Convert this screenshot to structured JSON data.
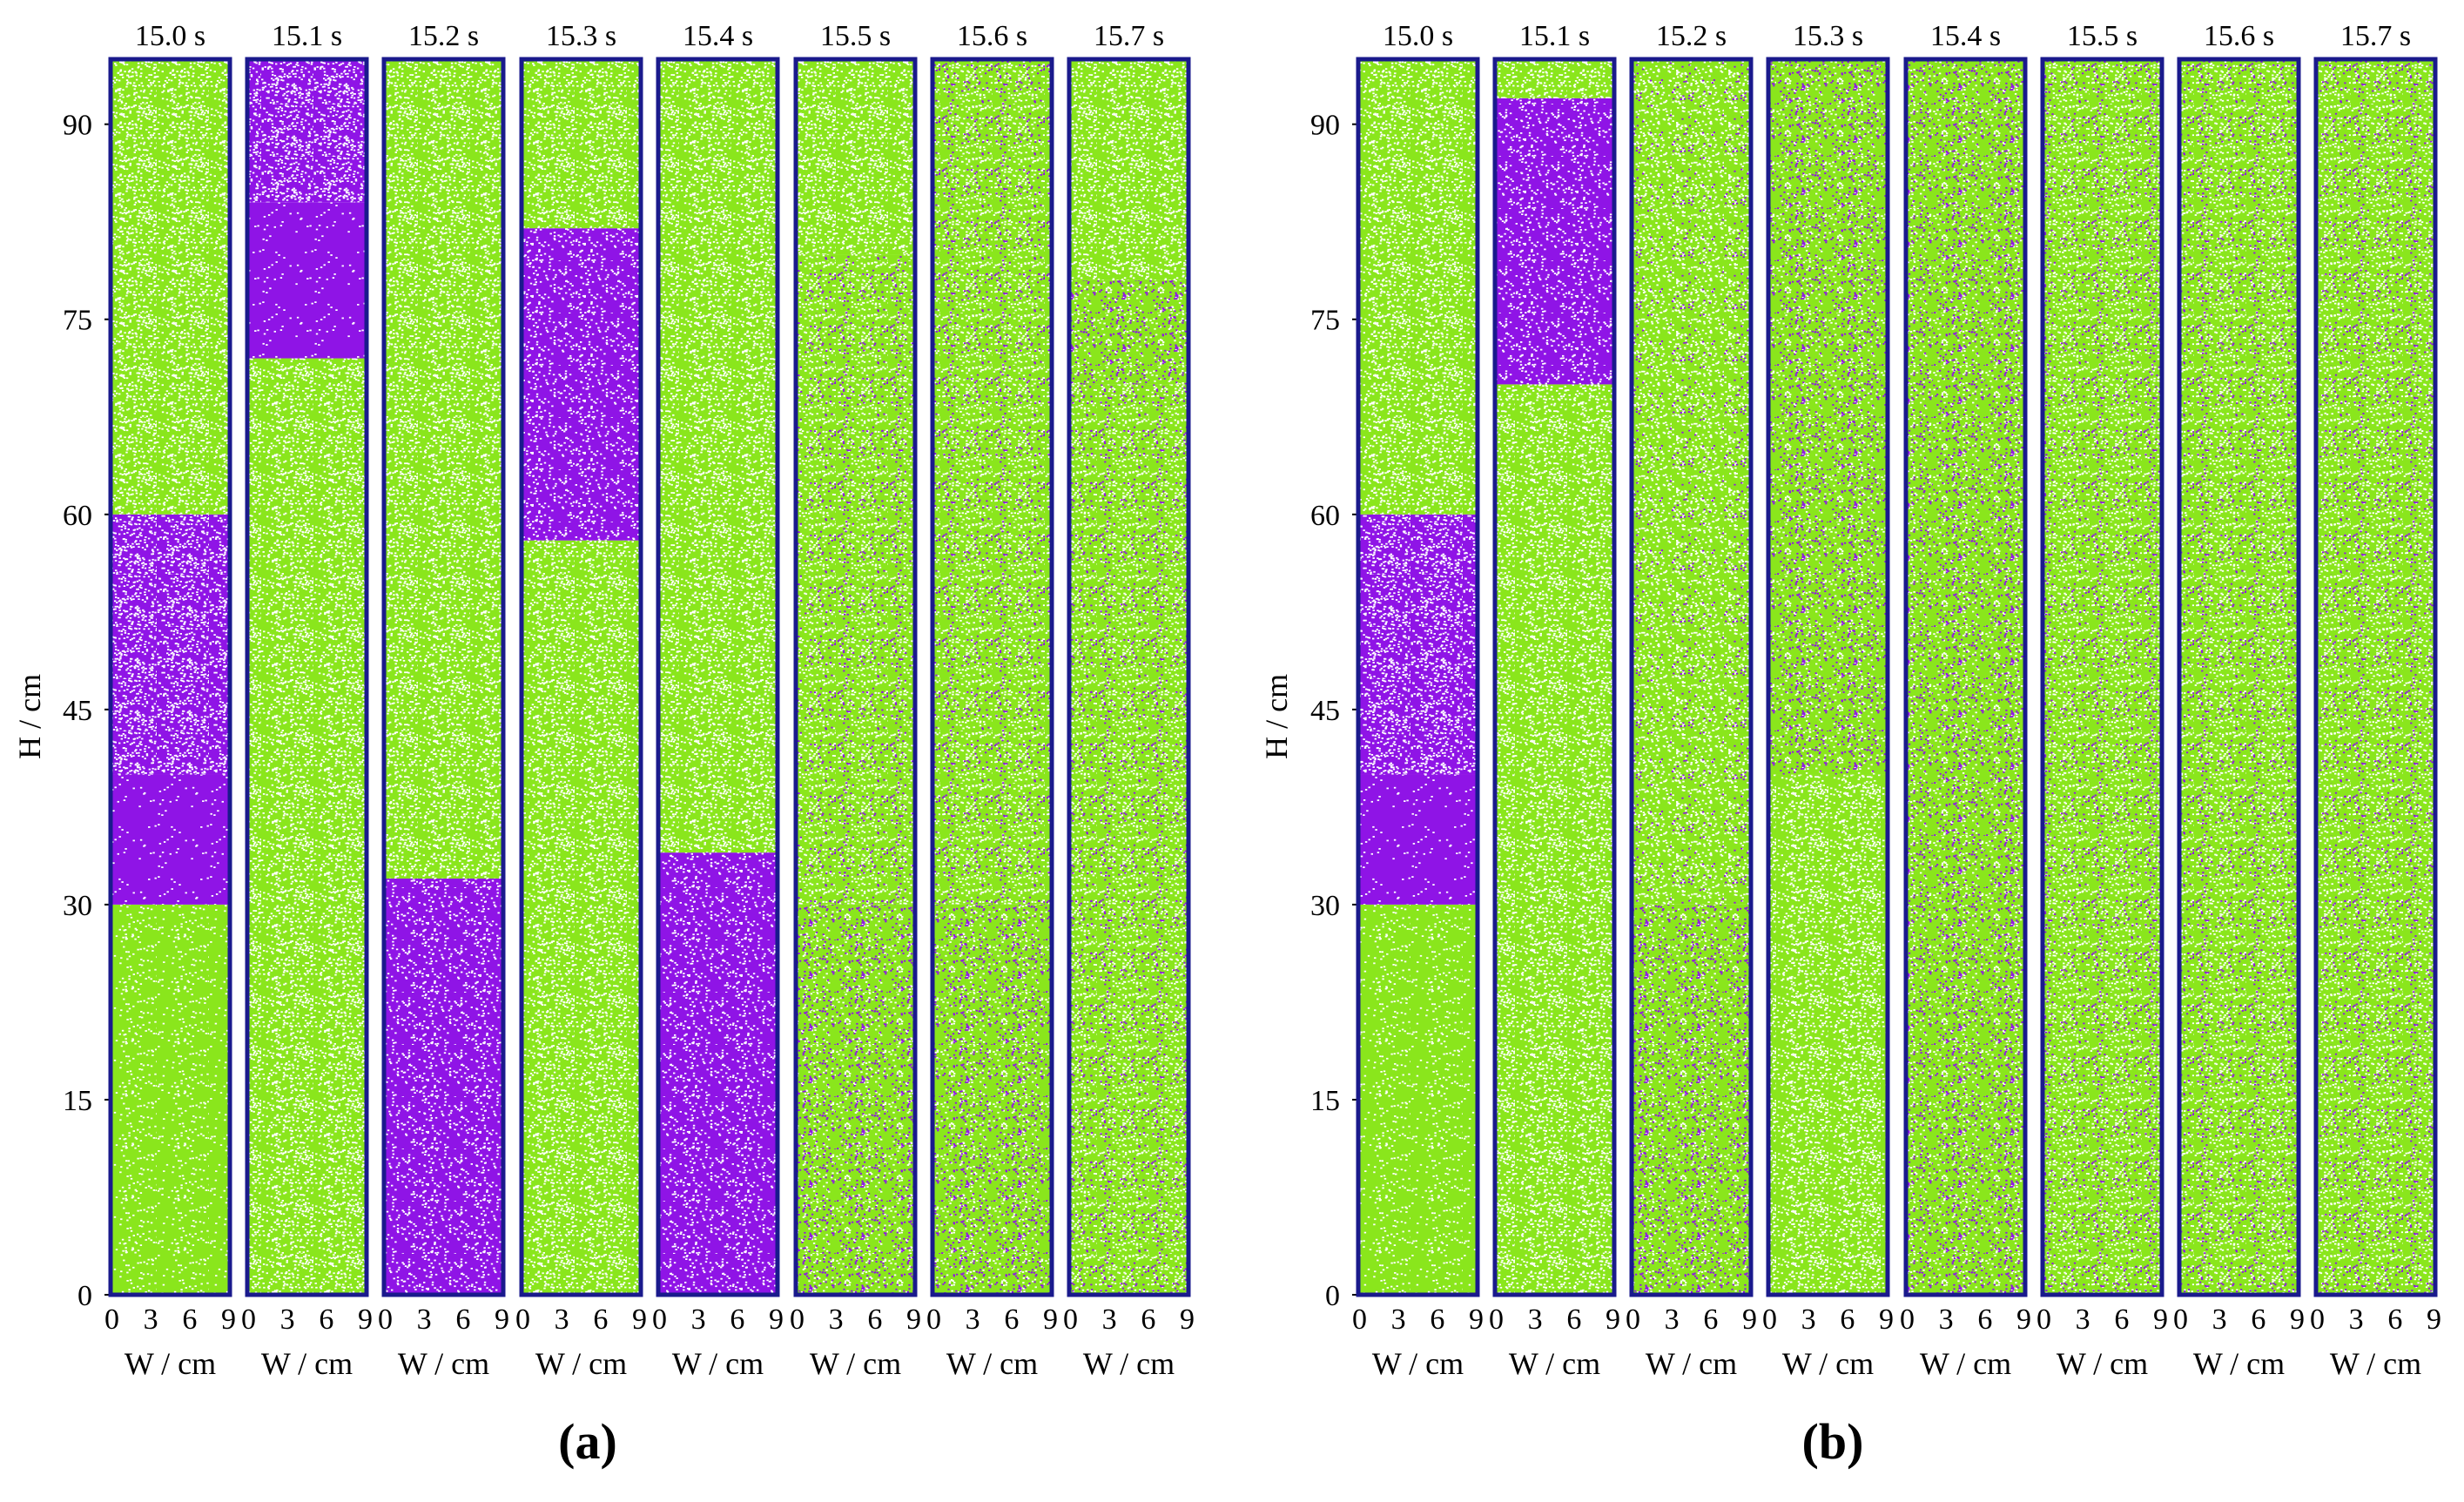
{
  "figure": {
    "panels": [
      {
        "label": "(a)",
        "ylabel": "H / cm",
        "xlabel": "W / cm",
        "y_ticks": [
          "0",
          "15",
          "30",
          "45",
          "60",
          "75",
          "90"
        ],
        "x_tick_text": [
          "0 3 6 9",
          "0 3 6 9",
          "0 3 6 9",
          "0 3 6 9",
          "0 3 6 9",
          "0 3 6 9",
          "0 3 6 9",
          "0 3 6 9"
        ],
        "times": [
          "15.0 s",
          "15.1 s",
          "15.2 s",
          "15.3 s",
          "15.4 s",
          "15.5 s",
          "15.6 s",
          "15.7 s"
        ]
      },
      {
        "label": "(b)",
        "ylabel": "H / cm",
        "xlabel": "W / cm",
        "y_ticks": [
          "0",
          "15",
          "30",
          "45",
          "60",
          "75",
          "90"
        ],
        "x_tick_text": [
          "0 3 6 9",
          "0 3 6 9",
          "0 3 6 9",
          "0 3 6 9",
          "0 3 6 9",
          "0 3 6 9",
          "0 3 6 9",
          "0 3 6 9"
        ],
        "times": [
          "15.0 s",
          "15.1 s",
          "15.2 s",
          "15.3 s",
          "15.4 s",
          "15.5 s",
          "15.6 s",
          "15.7 s"
        ]
      }
    ],
    "colors": {
      "frame": "#1a1a8c",
      "green": "#8ae61c",
      "purple": "#8f14e6",
      "white": "#ffffff"
    }
  }
}
